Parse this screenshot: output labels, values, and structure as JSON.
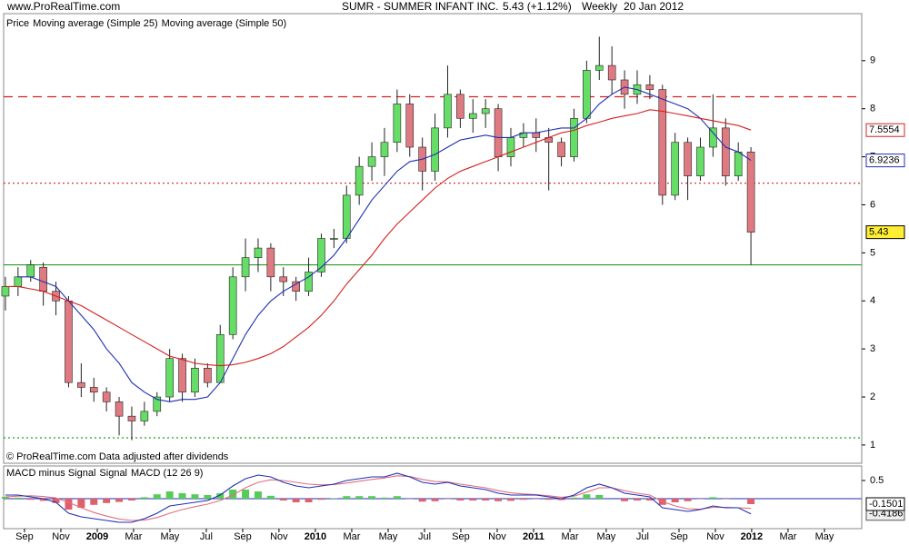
{
  "header": {
    "site": "www.ProRealTime.com",
    "title": "SUMR - SUMMER INFANT INC.",
    "quote": "5.43 (+1.12%)",
    "period": "Weekly",
    "date": "20 Jan 2012"
  },
  "footer": "© ProRealTime.com  Data adjusted after dividends",
  "chart_data": [
    {
      "type": "candlestick",
      "legend": [
        "Price"
      ],
      "up_color": "#66dd66",
      "down_color": "#e07a82",
      "open": [
        4.1,
        4.3,
        4.5,
        4.7,
        4.2,
        4.0,
        2.3,
        2.2,
        2.1,
        1.9,
        1.6,
        1.5,
        1.7,
        2.0,
        2.8,
        2.1,
        2.6,
        2.3,
        3.3,
        4.5,
        4.9,
        5.1,
        4.5,
        4.4,
        4.2,
        4.6,
        5.3,
        5.3,
        6.2,
        6.8,
        7.0,
        7.3,
        8.1,
        7.2,
        6.7,
        7.6,
        8.3,
        7.8,
        7.9,
        8.0,
        7.0,
        7.4,
        7.5,
        7.4,
        7.3,
        7.0,
        7.8,
        8.8,
        8.9,
        8.6,
        8.3,
        8.5,
        8.4,
        6.2,
        7.3,
        6.6,
        7.2,
        7.6,
        6.6,
        7.1
      ],
      "high": [
        4.5,
        4.7,
        4.85,
        4.8,
        4.4,
        4.1,
        2.7,
        2.4,
        2.2,
        2.0,
        1.8,
        1.9,
        2.1,
        3.0,
        2.9,
        2.8,
        2.7,
        3.5,
        4.7,
        5.3,
        5.3,
        5.2,
        4.7,
        4.5,
        4.9,
        5.4,
        5.5,
        6.4,
        7.0,
        7.3,
        7.6,
        8.4,
        8.3,
        7.4,
        7.9,
        8.9,
        8.4,
        8.2,
        8.2,
        8.1,
        7.6,
        7.7,
        7.8,
        7.6,
        7.4,
        8.0,
        9.0,
        9.5,
        9.3,
        8.8,
        8.8,
        8.7,
        8.5,
        7.5,
        7.4,
        7.4,
        8.3,
        7.8,
        7.3,
        7.2
      ],
      "low": [
        3.8,
        4.1,
        4.4,
        3.9,
        3.7,
        2.2,
        2.0,
        1.9,
        1.7,
        1.2,
        1.1,
        1.4,
        1.6,
        1.9,
        1.9,
        2.0,
        2.2,
        2.3,
        3.2,
        4.2,
        4.6,
        4.2,
        4.1,
        4.0,
        4.1,
        4.5,
        5.1,
        5.2,
        6.0,
        6.5,
        6.6,
        7.1,
        7.0,
        6.3,
        6.5,
        7.4,
        7.6,
        7.5,
        7.6,
        6.7,
        6.8,
        7.2,
        7.1,
        6.3,
        6.8,
        6.9,
        7.7,
        8.6,
        8.3,
        8.0,
        8.1,
        8.2,
        6.0,
        6.1,
        6.1,
        6.5,
        7.0,
        6.4,
        6.5,
        4.75
      ],
      "close": [
        4.3,
        4.5,
        4.75,
        4.2,
        4.0,
        2.3,
        2.2,
        2.1,
        1.9,
        1.6,
        1.5,
        1.7,
        2.0,
        2.8,
        2.1,
        2.6,
        2.3,
        3.3,
        4.5,
        4.9,
        5.1,
        4.5,
        4.4,
        4.2,
        4.6,
        5.3,
        5.3,
        6.2,
        6.8,
        7.0,
        7.3,
        8.1,
        7.2,
        6.7,
        7.6,
        8.3,
        7.8,
        7.9,
        8.0,
        7.0,
        7.4,
        7.5,
        7.4,
        7.3,
        7.0,
        7.8,
        8.8,
        8.9,
        8.6,
        8.3,
        8.5,
        8.4,
        6.2,
        7.3,
        6.6,
        7.2,
        7.6,
        6.6,
        7.1,
        5.43
      ],
      "series": [
        {
          "name": "Moving average (Simple 25)",
          "color": "#1f2fb0",
          "values": [
            null,
            4.5,
            4.5,
            4.4,
            4.3,
            4.0,
            3.7,
            3.4,
            3.0,
            2.7,
            2.3,
            2.1,
            1.95,
            1.9,
            1.95,
            1.95,
            2.0,
            2.3,
            2.8,
            3.3,
            3.7,
            4.0,
            4.2,
            4.35,
            4.5,
            4.7,
            4.95,
            5.3,
            5.7,
            6.1,
            6.4,
            6.7,
            6.9,
            6.95,
            7.05,
            7.2,
            7.35,
            7.4,
            7.45,
            7.4,
            7.4,
            7.5,
            7.5,
            7.55,
            7.6,
            7.6,
            7.8,
            8.1,
            8.3,
            8.45,
            8.4,
            8.3,
            8.2,
            8.1,
            8.0,
            7.8,
            7.5,
            7.2,
            7.1,
            6.9236
          ]
        },
        {
          "name": "Moving average (Simple 50)",
          "color": "#d42020",
          "values": [
            4.3,
            4.3,
            4.25,
            4.2,
            4.1,
            4.0,
            3.9,
            3.75,
            3.6,
            3.45,
            3.3,
            3.15,
            3.0,
            2.85,
            2.78,
            2.7,
            2.67,
            2.65,
            2.67,
            2.72,
            2.8,
            2.9,
            3.05,
            3.25,
            3.45,
            3.7,
            4.0,
            4.35,
            4.65,
            4.95,
            5.3,
            5.6,
            5.85,
            6.1,
            6.35,
            6.55,
            6.7,
            6.8,
            6.9,
            7.0,
            7.1,
            7.2,
            7.3,
            7.4,
            7.5,
            7.55,
            7.65,
            7.72,
            7.8,
            7.85,
            7.9,
            7.98,
            7.95,
            7.9,
            7.85,
            7.8,
            7.75,
            7.7,
            7.65,
            7.5554
          ]
        }
      ],
      "levels": [
        {
          "value": 4.75,
          "color": "#2a9a2a",
          "style": "solid"
        },
        {
          "value": 1.15,
          "color": "#2a9a2a",
          "style": "dotted"
        },
        {
          "value": 8.25,
          "color": "#d42020",
          "style": "dashed"
        },
        {
          "value": 6.45,
          "color": "#d42020",
          "style": "dotted"
        }
      ],
      "xlim": [
        -0.14,
        67.77
      ],
      "xticks": [
        {
          "value": 1.51,
          "label": "Sep"
        },
        {
          "value": 4.39,
          "label": "Nov"
        },
        {
          "value": 7.27,
          "label": "2009"
        },
        {
          "value": 10.14,
          "label": "Mar"
        },
        {
          "value": 13.02,
          "label": "May"
        },
        {
          "value": 15.9,
          "label": "Jul"
        },
        {
          "value": 18.78,
          "label": "Sep"
        },
        {
          "value": 21.65,
          "label": "Nov"
        },
        {
          "value": 24.53,
          "label": "2010"
        },
        {
          "value": 27.41,
          "label": "Mar"
        },
        {
          "value": 30.29,
          "label": "May"
        },
        {
          "value": 33.17,
          "label": "Jul"
        },
        {
          "value": 36.04,
          "label": "Sep"
        },
        {
          "value": 38.92,
          "label": "Nov"
        },
        {
          "value": 41.8,
          "label": "2011"
        },
        {
          "value": 44.68,
          "label": "Mar"
        },
        {
          "value": 47.55,
          "label": "May"
        },
        {
          "value": 50.43,
          "label": "Jul"
        },
        {
          "value": 53.31,
          "label": "Sep"
        },
        {
          "value": 56.19,
          "label": "Nov"
        },
        {
          "value": 59.06,
          "label": "2012"
        },
        {
          "value": 61.94,
          "label": "Mar"
        },
        {
          "value": 64.82,
          "label": "May"
        }
      ],
      "ylim": [
        0.62,
        9.98
      ],
      "yticks": [
        1,
        2,
        3,
        4,
        5,
        6,
        7,
        8,
        9
      ]
    },
    {
      "type": "macd",
      "legend": [
        "MACD minus Signal",
        "Signal",
        "MACD (12 26 9)"
      ],
      "histogram": {
        "name": "MACD minus Signal",
        "up_color": "#55cc55",
        "down_color": "#e0606a",
        "values": [
          0.05,
          0.03,
          -0.03,
          -0.06,
          -0.12,
          -0.3,
          -0.25,
          -0.17,
          -0.12,
          -0.09,
          -0.05,
          0.04,
          0.12,
          0.2,
          0.15,
          0.12,
          0.1,
          0.15,
          0.25,
          0.25,
          0.2,
          0.08,
          -0.05,
          -0.1,
          -0.1,
          -0.03,
          0.01,
          0.07,
          0.07,
          0.07,
          0.03,
          0.07,
          -0.01,
          -0.08,
          -0.07,
          -0.01,
          -0.05,
          -0.05,
          -0.05,
          -0.07,
          -0.06,
          -0.03,
          -0.01,
          -0.03,
          -0.04,
          0.03,
          0.12,
          0.1,
          0.0,
          -0.07,
          -0.05,
          -0.05,
          -0.17,
          -0.1,
          -0.07,
          -0.01,
          0.04,
          -0.01,
          0.0,
          -0.1501
        ]
      },
      "series": [
        {
          "name": "Signal",
          "color": "#e07080",
          "values": [
            0.05,
            0.07,
            0.08,
            0.06,
            0.02,
            -0.1,
            -0.25,
            -0.38,
            -0.48,
            -0.56,
            -0.6,
            -0.59,
            -0.52,
            -0.4,
            -0.3,
            -0.22,
            -0.15,
            -0.05,
            0.1,
            0.3,
            0.45,
            0.52,
            0.5,
            0.45,
            0.4,
            0.38,
            0.39,
            0.43,
            0.48,
            0.53,
            0.57,
            0.63,
            0.61,
            0.53,
            0.47,
            0.46,
            0.4,
            0.35,
            0.3,
            0.22,
            0.16,
            0.13,
            0.11,
            0.08,
            0.04,
            0.07,
            0.18,
            0.3,
            0.3,
            0.22,
            0.15,
            0.1,
            -0.08,
            -0.2,
            -0.28,
            -0.29,
            -0.24,
            -0.24,
            -0.25,
            -0.2685
          ]
        },
        {
          "name": "MACD (12 26 9)",
          "color": "#1f2fb0",
          "values": [
            0.1,
            0.1,
            0.05,
            0.0,
            -0.1,
            -0.4,
            -0.5,
            -0.55,
            -0.6,
            -0.65,
            -0.65,
            -0.55,
            -0.4,
            -0.2,
            -0.15,
            -0.1,
            -0.05,
            0.1,
            0.35,
            0.55,
            0.65,
            0.6,
            0.45,
            0.35,
            0.3,
            0.35,
            0.4,
            0.5,
            0.55,
            0.6,
            0.6,
            0.7,
            0.6,
            0.45,
            0.4,
            0.45,
            0.35,
            0.3,
            0.25,
            0.15,
            0.1,
            0.1,
            0.1,
            0.05,
            0.0,
            0.1,
            0.3,
            0.4,
            0.3,
            0.15,
            0.1,
            0.05,
            -0.25,
            -0.3,
            -0.35,
            -0.3,
            -0.2,
            -0.25,
            -0.25,
            -0.4186
          ]
        }
      ],
      "ylim": [
        -0.775,
        0.85
      ],
      "yticks": [
        0.5
      ]
    }
  ]
}
